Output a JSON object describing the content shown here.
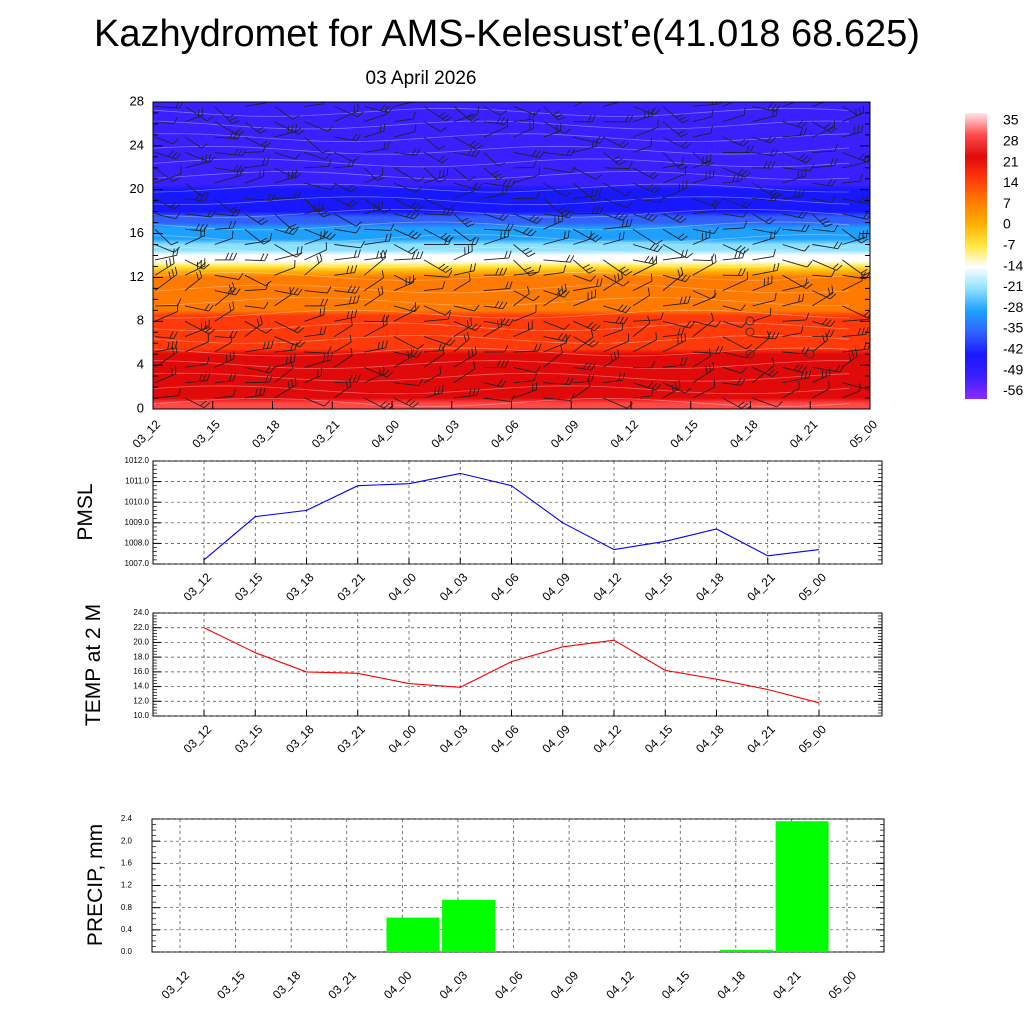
{
  "header": {
    "title": "Kazhydromet for AMS-Kelesust’e(41.018 68.625)",
    "date": "03 April 2026"
  },
  "time_labels": [
    "03_12",
    "03_15",
    "03_18",
    "03_21",
    "04_00",
    "04_03",
    "04_06",
    "04_09",
    "04_12",
    "04_15",
    "04_18",
    "04_21",
    "05_00"
  ],
  "chart_data": [
    {
      "id": "cross_section",
      "type": "heatmap",
      "title": "",
      "xlabel": "",
      "ylabel": "",
      "y_ticks": [
        0,
        4,
        8,
        12,
        16,
        20,
        24,
        28
      ],
      "ylim": [
        0,
        28
      ],
      "colorbar_labels": [
        "35",
        "28",
        "21",
        "14",
        "7",
        "0",
        "-7",
        "-14",
        "-21",
        "-28",
        "-35",
        "-42",
        "-49",
        "-56"
      ],
      "colorbar_colors": [
        "#ffe6e6",
        "#ff4a4a",
        "#e10a0a",
        "#ff3a0a",
        "#ff7a00",
        "#ffae00",
        "#ffe640",
        "#ffffff",
        "#8ee1ff",
        "#1ea0ff",
        "#3060ff",
        "#1818ff",
        "#3a20ff",
        "#8a2aff"
      ],
      "temperature_profile": [
        {
          "level": 0,
          "value": 22
        },
        {
          "level": 4,
          "value": 16
        },
        {
          "level": 8,
          "value": 8
        },
        {
          "level": 12,
          "value": 0
        },
        {
          "level": 13,
          "value": -14
        },
        {
          "level": 15,
          "value": -25
        },
        {
          "level": 18,
          "value": -45
        },
        {
          "level": 22,
          "value": -52
        },
        {
          "level": 25,
          "value": -56
        },
        {
          "level": 28,
          "value": -56
        }
      ]
    },
    {
      "id": "pmsl",
      "type": "line",
      "ylabel": "PMSL",
      "y_ticks": [
        "1007.0",
        "1008.0",
        "1009.0",
        "1010.0",
        "1011.0",
        "1012.0"
      ],
      "ylim": [
        1007,
        1012
      ],
      "color": "#0000ff",
      "values": [
        1007.2,
        1009.3,
        1009.6,
        1010.8,
        1010.9,
        1011.4,
        1010.8,
        1009.0,
        1007.7,
        1008.1,
        1008.7,
        1007.4,
        1007.7
      ]
    },
    {
      "id": "temp2m",
      "type": "line",
      "ylabel": "TEMP at 2 M",
      "y_ticks": [
        "10.0",
        "12.0",
        "14.0",
        "16.0",
        "18.0",
        "20.0",
        "22.0",
        "24.0"
      ],
      "ylim": [
        10,
        24
      ],
      "color": "#ff0000",
      "values": [
        22.0,
        18.6,
        16.0,
        15.8,
        14.4,
        13.9,
        17.4,
        19.4,
        20.3,
        16.2,
        15.0,
        13.6,
        11.8
      ]
    },
    {
      "id": "precip",
      "type": "bar",
      "ylabel": "PRECIP, mm",
      "y_ticks": [
        "0.0",
        "0.4",
        "0.8",
        "1.2",
        "1.6",
        "2.0",
        "2.4"
      ],
      "ylim": [
        0,
        2.4
      ],
      "color": "#00ff00",
      "values": [
        0,
        0,
        0,
        0,
        0.62,
        0.94,
        0,
        0,
        0,
        0,
        0.04,
        2.36,
        0
      ]
    }
  ]
}
